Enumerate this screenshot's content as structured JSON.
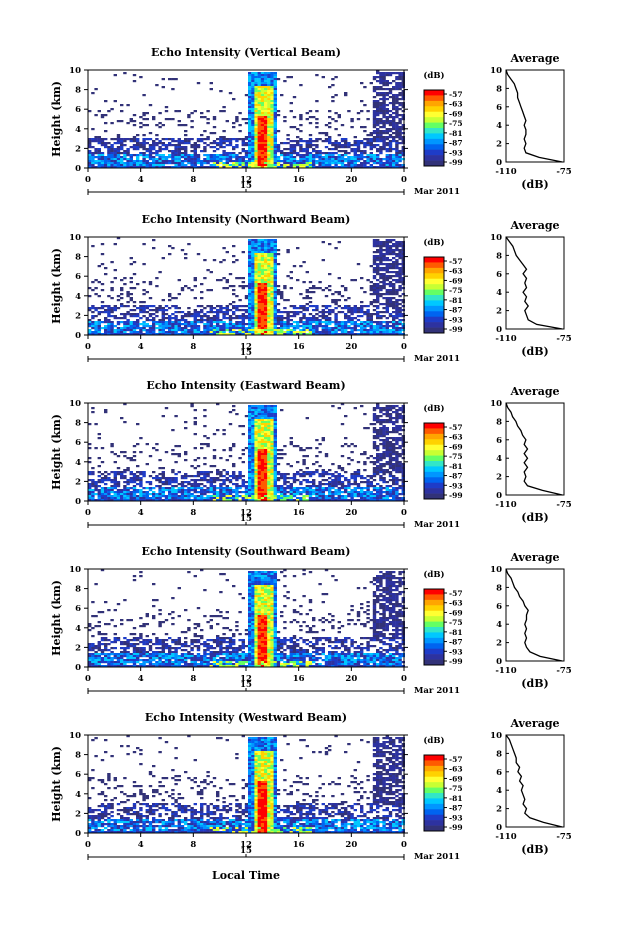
{
  "page": {
    "bottom_xlabel": "Local Time"
  },
  "colorbar": {
    "unit": "(dB)",
    "ticks": [
      "-57",
      "-63",
      "-69",
      "-75",
      "-81",
      "-87",
      "-93",
      "-99"
    ],
    "colors": [
      "#ff0000",
      "#ff5a00",
      "#ffa500",
      "#ffd200",
      "#ffff32",
      "#c8ff32",
      "#64ff64",
      "#32e6c8",
      "#00c8ff",
      "#0096ff",
      "#0064f0",
      "#1e3cc8",
      "#2d32a0",
      "#323278"
    ]
  },
  "panels": [
    {
      "title": "Echo Intensity (Vertical Beam)",
      "ylabel": "Height (km)",
      "xticks": [
        "0",
        "4",
        "8",
        "12",
        "16",
        "20",
        "0"
      ],
      "date_tick": "15",
      "date_label": "Mar 2011",
      "avg_title": "Average",
      "avg_xticks": [
        "-110",
        "-75"
      ],
      "avg_xlabel": "(dB)",
      "avg_yticks": [
        "0",
        "2",
        "4",
        "6",
        "8",
        "10"
      ],
      "yticks": [
        "0",
        "2",
        "4",
        "6",
        "8",
        "10"
      ]
    },
    {
      "title": "Echo Intensity (Northward Beam)",
      "ylabel": "Height (km)",
      "xticks": [
        "0",
        "4",
        "8",
        "12",
        "16",
        "20",
        "0"
      ],
      "date_tick": "15",
      "date_label": "Mar 2011",
      "avg_title": "Average",
      "avg_xticks": [
        "-110",
        "-75"
      ],
      "avg_xlabel": "(dB)",
      "avg_yticks": [
        "0",
        "2",
        "4",
        "6",
        "8",
        "10"
      ],
      "yticks": [
        "0",
        "2",
        "4",
        "6",
        "8",
        "10"
      ]
    },
    {
      "title": "Echo Intensity (Eastward Beam)",
      "ylabel": "Height (km)",
      "xticks": [
        "0",
        "4",
        "8",
        "12",
        "16",
        "20",
        "0"
      ],
      "date_tick": "15",
      "date_label": "Mar 2011",
      "avg_title": "Average",
      "avg_xticks": [
        "-110",
        "-75"
      ],
      "avg_xlabel": "(dB)",
      "avg_yticks": [
        "0",
        "2",
        "4",
        "6",
        "8",
        "10"
      ],
      "yticks": [
        "0",
        "2",
        "4",
        "6",
        "8",
        "10"
      ]
    },
    {
      "title": "Echo Intensity (Southward Beam)",
      "ylabel": "Height (km)",
      "xticks": [
        "0",
        "4",
        "8",
        "12",
        "16",
        "20",
        "0"
      ],
      "date_tick": "15",
      "date_label": "Mar 2011",
      "avg_title": "Average",
      "avg_xticks": [
        "-110",
        "-75"
      ],
      "avg_xlabel": "(dB)",
      "avg_yticks": [
        "0",
        "2",
        "4",
        "6",
        "8",
        "10"
      ],
      "yticks": [
        "0",
        "2",
        "4",
        "6",
        "8",
        "10"
      ]
    },
    {
      "title": "Echo Intensity (Westward Beam)",
      "ylabel": "Height (km)",
      "xticks": [
        "0",
        "4",
        "8",
        "12",
        "16",
        "20",
        "0"
      ],
      "date_tick": "15",
      "date_label": "Mar 2011",
      "avg_title": "Average",
      "avg_xticks": [
        "-110",
        "-75"
      ],
      "avg_xlabel": "(dB)",
      "avg_yticks": [
        "0",
        "2",
        "4",
        "6",
        "8",
        "10"
      ],
      "yticks": [
        "0",
        "2",
        "4",
        "6",
        "8",
        "10"
      ]
    }
  ],
  "chart_data": [
    {
      "type": "heatmap",
      "title": "Echo Intensity (Vertical Beam)",
      "xlabel": "",
      "ylabel": "Height (km)",
      "x_range_hours": [
        0,
        24
      ],
      "ylim": [
        0,
        10
      ],
      "z_range_dB": [
        -99,
        -57
      ],
      "profile": {
        "title": "Average",
        "xlabel": "(dB)",
        "xlim": [
          -110,
          -75
        ],
        "height_km": [
          0,
          0.5,
          1,
          1.5,
          2,
          2.5,
          3,
          3.5,
          4,
          4.5,
          5,
          5.5,
          6,
          6.5,
          7,
          7.5,
          8,
          8.5,
          9,
          9.5,
          10
        ],
        "value_dB": [
          -76,
          -90,
          -98,
          -99,
          -98,
          -99,
          -98,
          -98,
          -99,
          -98,
          -99,
          -100,
          -101,
          -102,
          -103,
          -103,
          -104,
          -105,
          -107,
          -109,
          -110
        ]
      }
    },
    {
      "type": "heatmap",
      "title": "Echo Intensity (Northward Beam)",
      "xlabel": "",
      "ylabel": "Height (km)",
      "x_range_hours": [
        0,
        24
      ],
      "ylim": [
        0,
        10
      ],
      "z_range_dB": [
        -99,
        -57
      ],
      "profile": {
        "title": "Average",
        "xlabel": "(dB)",
        "xlim": [
          -110,
          -76
        ],
        "height_km": [
          0,
          0.5,
          1,
          1.5,
          2,
          2.5,
          3,
          3.5,
          4,
          4.5,
          5,
          5.5,
          6,
          6.5,
          7,
          7.5,
          8,
          8.5,
          9,
          9.5,
          10
        ],
        "value_dB": [
          -77,
          -92,
          -97,
          -98,
          -99,
          -97,
          -99,
          -98,
          -100,
          -98,
          -99,
          -98,
          -100,
          -98,
          -100,
          -102,
          -104,
          -105,
          -106,
          -108,
          -110
        ]
      }
    },
    {
      "type": "heatmap",
      "title": "Echo Intensity (Eastward Beam)",
      "xlabel": "",
      "ylabel": "Height (km)",
      "x_range_hours": [
        0,
        24
      ],
      "ylim": [
        0,
        10
      ],
      "z_range_dB": [
        -99,
        -57
      ],
      "profile": {
        "title": "Average",
        "xlabel": "(dB)",
        "xlim": [
          -110,
          -75
        ],
        "height_km": [
          0,
          0.5,
          1,
          1.5,
          2,
          2.5,
          3,
          3.5,
          4,
          4.5,
          5,
          5.5,
          6,
          6.5,
          7,
          7.5,
          8,
          8.5,
          9,
          9.5,
          10
        ],
        "value_dB": [
          -76,
          -88,
          -97,
          -99,
          -98,
          -99,
          -97,
          -99,
          -97,
          -99,
          -97,
          -99,
          -98,
          -100,
          -101,
          -103,
          -104,
          -106,
          -107,
          -109,
          -110
        ]
      }
    },
    {
      "type": "heatmap",
      "title": "Echo Intensity (Southward Beam)",
      "xlabel": "",
      "ylabel": "Height (km)",
      "x_range_hours": [
        0,
        24
      ],
      "ylim": [
        0,
        10
      ],
      "z_range_dB": [
        -99,
        -57
      ],
      "profile": {
        "title": "Average",
        "xlabel": "(dB)",
        "xlim": [
          -110,
          -76
        ],
        "height_km": [
          0,
          0.5,
          1,
          1.5,
          2,
          2.5,
          3,
          3.5,
          4,
          4.5,
          5,
          5.5,
          6,
          6.5,
          7,
          7.5,
          8,
          8.5,
          9,
          9.5,
          10
        ],
        "value_dB": [
          -77,
          -90,
          -96,
          -98,
          -99,
          -98,
          -99,
          -98,
          -99,
          -98,
          -98,
          -97,
          -99,
          -100,
          -102,
          -103,
          -105,
          -106,
          -107,
          -109,
          -110
        ]
      }
    },
    {
      "type": "heatmap",
      "title": "Echo Intensity (Westward Beam)",
      "xlabel": "Local Time",
      "ylabel": "Height (km)",
      "x_range_hours": [
        0,
        24
      ],
      "ylim": [
        0,
        10
      ],
      "z_range_dB": [
        -99,
        -57
      ],
      "profile": {
        "title": "Average",
        "xlabel": "(dB)",
        "xlim": [
          -110,
          -76
        ],
        "height_km": [
          0,
          0.5,
          1,
          1.5,
          2,
          2.5,
          3,
          3.5,
          4,
          4.5,
          5,
          5.5,
          6,
          6.5,
          7,
          7.5,
          8,
          8.5,
          9,
          9.5,
          10
        ],
        "value_dB": [
          -77,
          -88,
          -96,
          -99,
          -98,
          -100,
          -99,
          -100,
          -101,
          -100,
          -102,
          -101,
          -103,
          -102,
          -104,
          -104,
          -105,
          -106,
          -107,
          -108,
          -110
        ]
      }
    }
  ]
}
